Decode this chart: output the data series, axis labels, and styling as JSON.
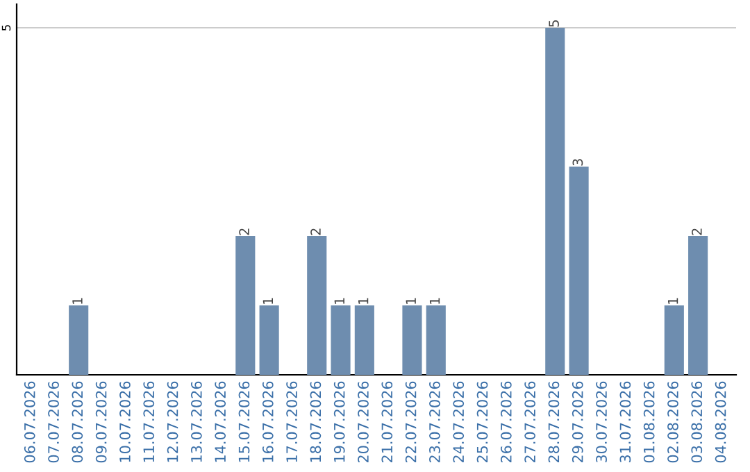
{
  "chart_data": {
    "type": "bar",
    "categories": [
      "06.07.2026",
      "07.07.2026",
      "08.07.2026",
      "09.07.2026",
      "10.07.2026",
      "11.07.2026",
      "12.07.2026",
      "13.07.2026",
      "14.07.2026",
      "15.07.2026",
      "16.07.2026",
      "17.07.2026",
      "18.07.2026",
      "19.07.2026",
      "20.07.2026",
      "21.07.2026",
      "22.07.2026",
      "23.07.2026",
      "24.07.2026",
      "25.07.2026",
      "26.07.2026",
      "27.07.2026",
      "28.07.2026",
      "29.07.2026",
      "30.07.2026",
      "31.07.2026",
      "01.08.2026",
      "02.08.2026",
      "03.08.2026",
      "04.08.2026"
    ],
    "values": [
      0,
      0,
      1,
      0,
      0,
      0,
      0,
      0,
      0,
      2,
      1,
      0,
      2,
      1,
      1,
      0,
      1,
      1,
      0,
      0,
      0,
      0,
      5,
      3,
      0,
      0,
      0,
      1,
      2,
      0
    ],
    "value_labels": [
      null,
      null,
      "1",
      null,
      null,
      null,
      null,
      null,
      null,
      "2",
      "1",
      null,
      "2",
      "1",
      "1",
      null,
      "1",
      "1",
      null,
      null,
      null,
      null,
      "5",
      "3",
      null,
      null,
      null,
      "1",
      "2",
      null
    ],
    "color": "#6e8daf",
    "ylim": [
      0,
      5.34
    ],
    "yticks": [
      5
    ],
    "grid": "y"
  }
}
